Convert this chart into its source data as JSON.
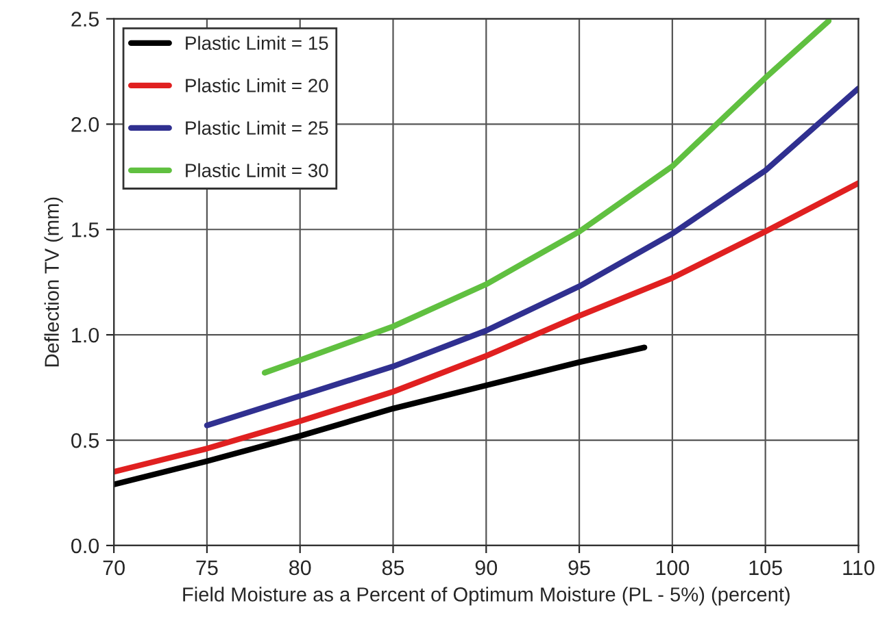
{
  "chart_data": {
    "type": "line",
    "xlabel": "Field Moisture as a Percent of Optimum Moisture (PL - 5%) (percent)",
    "ylabel": "Deflection TV (mm)",
    "xlim": [
      70,
      110
    ],
    "ylim": [
      0,
      2.5
    ],
    "xticks": [
      70,
      75,
      80,
      85,
      90,
      95,
      100,
      105,
      110
    ],
    "yticks": [
      {
        "value": 0,
        "label": "0.0"
      },
      0.5,
      {
        "value": 1,
        "label": "1.0"
      },
      1.5,
      {
        "value": 2,
        "label": "2.0"
      },
      2.5
    ],
    "grid": true,
    "legend": "top left",
    "marker": "none",
    "line_style": "solid",
    "series": [
      {
        "name": "Plastic Limit = 15",
        "color": "#000000",
        "x": [
          70,
          75,
          80,
          85,
          90,
          95,
          98.5
        ],
        "values": [
          0.29,
          0.4,
          0.52,
          0.65,
          0.76,
          0.87,
          0.94
        ]
      },
      {
        "name": "Plastic Limit = 20",
        "color": "#e02020",
        "x": [
          70,
          75,
          80,
          85,
          90,
          95,
          100,
          105,
          110
        ],
        "values": [
          0.35,
          0.46,
          0.59,
          0.73,
          0.9,
          1.09,
          1.27,
          1.49,
          1.72
        ]
      },
      {
        "name": "Plastic Limit = 25",
        "color": "#303090",
        "x": [
          75,
          80,
          85,
          90,
          95,
          100,
          105,
          110
        ],
        "values": [
          0.57,
          0.71,
          0.85,
          1.02,
          1.23,
          1.48,
          1.78,
          2.17
        ]
      },
      {
        "name": "Plastic Limit = 30",
        "color": "#60c040",
        "x": [
          78.1,
          80,
          85,
          90,
          95,
          100,
          105,
          108.4
        ],
        "values": [
          0.82,
          0.88,
          1.04,
          1.24,
          1.49,
          1.8,
          2.22,
          2.49
        ]
      }
    ]
  }
}
